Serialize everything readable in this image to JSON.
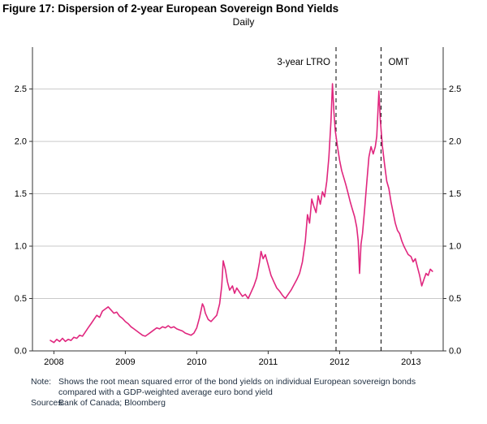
{
  "title": "Figure 17: Dispersion of 2-year European Sovereign Bond Yields",
  "subtitle": "Daily",
  "note": {
    "label": "Note:",
    "line1": "Shows the root mean squared error of the bond yields on individual European sovereign bonds",
    "line2": "compared with a GDP-weighted average euro bond yield"
  },
  "sources": {
    "label": "Sources:",
    "text": "Bank of Canada; Bloomberg"
  },
  "chart_data": {
    "type": "line",
    "title": "Figure 17: Dispersion of 2-year European Sovereign Bond Yields",
    "subtitle": "Daily",
    "series_name": "Root mean squared error of individual European sovereign 2-year bond yields vs GDP-weighted average euro bond yield",
    "xlim": [
      2007.7,
      2013.45
    ],
    "ylim": [
      0,
      2.9
    ],
    "xticks": [
      2008,
      2009,
      2010,
      2011,
      2012,
      2013
    ],
    "xtick_labels": [
      "2008",
      "2009",
      "2010",
      "2011",
      "2012",
      "2013"
    ],
    "yticks": [
      0.0,
      0.5,
      1.0,
      1.5,
      2.0,
      2.5
    ],
    "ytick_labels": [
      "0.0",
      "0.5",
      "1.0",
      "1.5",
      "2.0",
      "2.5"
    ],
    "grid": true,
    "legend_position": "none",
    "line_color": "#e0267e",
    "axis_color": "#333333",
    "grid_color": "#c9c9c9",
    "events": [
      {
        "label": "3-year LTRO",
        "x": 2011.95,
        "label_side": "left"
      },
      {
        "label": "OMT",
        "x": 2012.58,
        "label_side": "right"
      }
    ],
    "points": [
      [
        2007.95,
        0.1
      ],
      [
        2008.0,
        0.08
      ],
      [
        2008.04,
        0.11
      ],
      [
        2008.08,
        0.09
      ],
      [
        2008.12,
        0.12
      ],
      [
        2008.16,
        0.09
      ],
      [
        2008.2,
        0.11
      ],
      [
        2008.24,
        0.1
      ],
      [
        2008.28,
        0.13
      ],
      [
        2008.32,
        0.12
      ],
      [
        2008.36,
        0.15
      ],
      [
        2008.4,
        0.14
      ],
      [
        2008.44,
        0.18
      ],
      [
        2008.48,
        0.22
      ],
      [
        2008.52,
        0.26
      ],
      [
        2008.56,
        0.3
      ],
      [
        2008.6,
        0.34
      ],
      [
        2008.64,
        0.32
      ],
      [
        2008.68,
        0.38
      ],
      [
        2008.72,
        0.4
      ],
      [
        2008.76,
        0.42
      ],
      [
        2008.8,
        0.39
      ],
      [
        2008.84,
        0.36
      ],
      [
        2008.88,
        0.37
      ],
      [
        2008.92,
        0.33
      ],
      [
        2008.96,
        0.31
      ],
      [
        2009.0,
        0.28
      ],
      [
        2009.04,
        0.26
      ],
      [
        2009.08,
        0.23
      ],
      [
        2009.12,
        0.21
      ],
      [
        2009.16,
        0.19
      ],
      [
        2009.2,
        0.17
      ],
      [
        2009.24,
        0.15
      ],
      [
        2009.28,
        0.14
      ],
      [
        2009.32,
        0.16
      ],
      [
        2009.36,
        0.18
      ],
      [
        2009.4,
        0.2
      ],
      [
        2009.44,
        0.22
      ],
      [
        2009.48,
        0.21
      ],
      [
        2009.52,
        0.23
      ],
      [
        2009.56,
        0.22
      ],
      [
        2009.6,
        0.24
      ],
      [
        2009.64,
        0.22
      ],
      [
        2009.68,
        0.23
      ],
      [
        2009.72,
        0.21
      ],
      [
        2009.76,
        0.2
      ],
      [
        2009.8,
        0.19
      ],
      [
        2009.84,
        0.17
      ],
      [
        2009.88,
        0.16
      ],
      [
        2009.92,
        0.15
      ],
      [
        2009.96,
        0.17
      ],
      [
        2010.0,
        0.22
      ],
      [
        2010.04,
        0.32
      ],
      [
        2010.08,
        0.45
      ],
      [
        2010.1,
        0.42
      ],
      [
        2010.12,
        0.36
      ],
      [
        2010.16,
        0.3
      ],
      [
        2010.2,
        0.28
      ],
      [
        2010.24,
        0.31
      ],
      [
        2010.28,
        0.34
      ],
      [
        2010.32,
        0.45
      ],
      [
        2010.35,
        0.62
      ],
      [
        2010.37,
        0.86
      ],
      [
        2010.4,
        0.78
      ],
      [
        2010.43,
        0.66
      ],
      [
        2010.46,
        0.58
      ],
      [
        2010.5,
        0.62
      ],
      [
        2010.53,
        0.55
      ],
      [
        2010.56,
        0.6
      ],
      [
        2010.6,
        0.56
      ],
      [
        2010.64,
        0.52
      ],
      [
        2010.68,
        0.54
      ],
      [
        2010.72,
        0.5
      ],
      [
        2010.76,
        0.56
      ],
      [
        2010.8,
        0.62
      ],
      [
        2010.84,
        0.7
      ],
      [
        2010.88,
        0.85
      ],
      [
        2010.9,
        0.95
      ],
      [
        2010.93,
        0.88
      ],
      [
        2010.96,
        0.92
      ],
      [
        2011.0,
        0.82
      ],
      [
        2011.04,
        0.72
      ],
      [
        2011.08,
        0.66
      ],
      [
        2011.12,
        0.6
      ],
      [
        2011.16,
        0.57
      ],
      [
        2011.2,
        0.53
      ],
      [
        2011.24,
        0.5
      ],
      [
        2011.28,
        0.54
      ],
      [
        2011.32,
        0.58
      ],
      [
        2011.36,
        0.63
      ],
      [
        2011.4,
        0.68
      ],
      [
        2011.44,
        0.74
      ],
      [
        2011.48,
        0.85
      ],
      [
        2011.52,
        1.05
      ],
      [
        2011.55,
        1.3
      ],
      [
        2011.58,
        1.22
      ],
      [
        2011.61,
        1.45
      ],
      [
        2011.64,
        1.38
      ],
      [
        2011.67,
        1.32
      ],
      [
        2011.7,
        1.48
      ],
      [
        2011.73,
        1.4
      ],
      [
        2011.76,
        1.52
      ],
      [
        2011.79,
        1.47
      ],
      [
        2011.82,
        1.62
      ],
      [
        2011.85,
        1.85
      ],
      [
        2011.88,
        2.2
      ],
      [
        2011.9,
        2.55
      ],
      [
        2011.92,
        2.28
      ],
      [
        2011.94,
        2.1
      ],
      [
        2011.97,
        1.95
      ],
      [
        2012.0,
        1.82
      ],
      [
        2012.03,
        1.72
      ],
      [
        2012.06,
        1.65
      ],
      [
        2012.09,
        1.58
      ],
      [
        2012.12,
        1.5
      ],
      [
        2012.15,
        1.42
      ],
      [
        2012.18,
        1.35
      ],
      [
        2012.21,
        1.28
      ],
      [
        2012.24,
        1.18
      ],
      [
        2012.26,
        1.05
      ],
      [
        2012.28,
        0.74
      ],
      [
        2012.3,
        1.02
      ],
      [
        2012.32,
        1.12
      ],
      [
        2012.35,
        1.35
      ],
      [
        2012.38,
        1.6
      ],
      [
        2012.41,
        1.85
      ],
      [
        2012.44,
        1.95
      ],
      [
        2012.47,
        1.88
      ],
      [
        2012.5,
        1.95
      ],
      [
        2012.52,
        2.05
      ],
      [
        2012.55,
        2.48
      ],
      [
        2012.57,
        2.2
      ],
      [
        2012.6,
        1.95
      ],
      [
        2012.63,
        1.78
      ],
      [
        2012.66,
        1.62
      ],
      [
        2012.69,
        1.55
      ],
      [
        2012.72,
        1.42
      ],
      [
        2012.75,
        1.32
      ],
      [
        2012.78,
        1.22
      ],
      [
        2012.81,
        1.15
      ],
      [
        2012.84,
        1.12
      ],
      [
        2012.87,
        1.05
      ],
      [
        2012.9,
        1.0
      ],
      [
        2012.93,
        0.96
      ],
      [
        2012.96,
        0.92
      ],
      [
        2013.0,
        0.9
      ],
      [
        2013.03,
        0.85
      ],
      [
        2013.06,
        0.88
      ],
      [
        2013.09,
        0.8
      ],
      [
        2013.12,
        0.72
      ],
      [
        2013.15,
        0.62
      ],
      [
        2013.18,
        0.68
      ],
      [
        2013.21,
        0.74
      ],
      [
        2013.24,
        0.72
      ],
      [
        2013.27,
        0.78
      ],
      [
        2013.3,
        0.76
      ]
    ]
  }
}
